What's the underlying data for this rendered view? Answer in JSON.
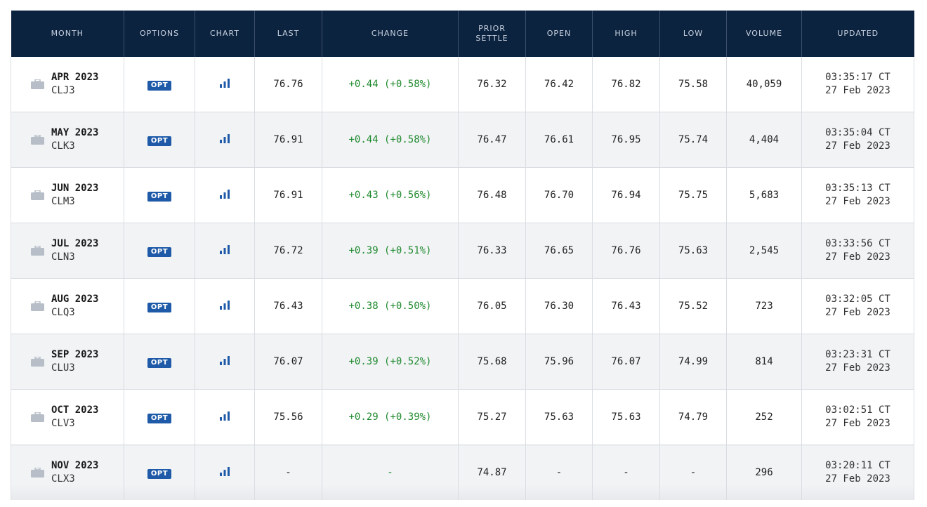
{
  "headers": {
    "month": "MONTH",
    "options": "OPTIONS",
    "chart": "CHART",
    "last": "LAST",
    "change": "CHANGE",
    "prior_settle_line1": "PRIOR",
    "prior_settle_line2": "SETTLE",
    "open": "OPEN",
    "high": "HIGH",
    "low": "LOW",
    "volume": "VOLUME",
    "updated": "UPDATED"
  },
  "icons": {
    "month": "briefcase-icon",
    "chart": "bar-chart-icon"
  },
  "colors": {
    "header_bg": "#0c2340",
    "opt_badge": "#1e5aa8",
    "positive_change": "#1f8a2e",
    "chart_icon": "#1e5aa8"
  },
  "rows": [
    {
      "month": "APR 2023",
      "code": "CLJ3",
      "opt": "OPT",
      "last": "76.76",
      "change": "+0.44 (+0.58%)",
      "prior_settle": "76.32",
      "open": "76.42",
      "high": "76.82",
      "low": "75.58",
      "volume": "40,059",
      "time": "03:35:17 CT",
      "date": "27 Feb 2023"
    },
    {
      "month": "MAY 2023",
      "code": "CLK3",
      "opt": "OPT",
      "last": "76.91",
      "change": "+0.44 (+0.58%)",
      "prior_settle": "76.47",
      "open": "76.61",
      "high": "76.95",
      "low": "75.74",
      "volume": "4,404",
      "time": "03:35:04 CT",
      "date": "27 Feb 2023"
    },
    {
      "month": "JUN 2023",
      "code": "CLM3",
      "opt": "OPT",
      "last": "76.91",
      "change": "+0.43 (+0.56%)",
      "prior_settle": "76.48",
      "open": "76.70",
      "high": "76.94",
      "low": "75.75",
      "volume": "5,683",
      "time": "03:35:13 CT",
      "date": "27 Feb 2023"
    },
    {
      "month": "JUL 2023",
      "code": "CLN3",
      "opt": "OPT",
      "last": "76.72",
      "change": "+0.39 (+0.51%)",
      "prior_settle": "76.33",
      "open": "76.65",
      "high": "76.76",
      "low": "75.63",
      "volume": "2,545",
      "time": "03:33:56 CT",
      "date": "27 Feb 2023"
    },
    {
      "month": "AUG 2023",
      "code": "CLQ3",
      "opt": "OPT",
      "last": "76.43",
      "change": "+0.38 (+0.50%)",
      "prior_settle": "76.05",
      "open": "76.30",
      "high": "76.43",
      "low": "75.52",
      "volume": "723",
      "time": "03:32:05 CT",
      "date": "27 Feb 2023"
    },
    {
      "month": "SEP 2023",
      "code": "CLU3",
      "opt": "OPT",
      "last": "76.07",
      "change": "+0.39 (+0.52%)",
      "prior_settle": "75.68",
      "open": "75.96",
      "high": "76.07",
      "low": "74.99",
      "volume": "814",
      "time": "03:23:31 CT",
      "date": "27 Feb 2023"
    },
    {
      "month": "OCT 2023",
      "code": "CLV3",
      "opt": "OPT",
      "last": "75.56",
      "change": "+0.29 (+0.39%)",
      "prior_settle": "75.27",
      "open": "75.63",
      "high": "75.63",
      "low": "74.79",
      "volume": "252",
      "time": "03:02:51 CT",
      "date": "27 Feb 2023"
    },
    {
      "month": "NOV 2023",
      "code": "CLX3",
      "opt": "OPT",
      "last": "-",
      "change": "-",
      "prior_settle": "74.87",
      "open": "-",
      "high": "-",
      "low": "-",
      "volume": "296",
      "time": "03:20:11 CT",
      "date": "27 Feb 2023"
    }
  ]
}
